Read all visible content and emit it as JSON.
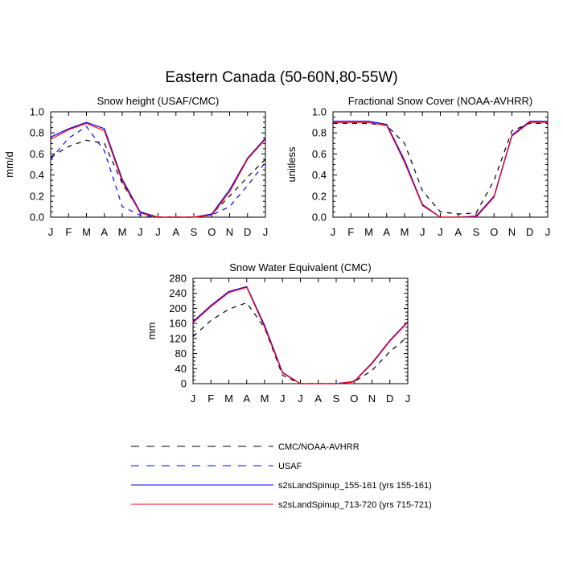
{
  "figure_title": "Eastern Canada (50-60N,80-55W)",
  "legend": [
    {
      "label": "CMC/NOAA-AVHRR",
      "color": "#000000",
      "dash": "dashed"
    },
    {
      "label": "USAF",
      "color": "#0000ff",
      "dash": "dashed"
    },
    {
      "label": "s2sLandSpinup_155-161 (yrs 155-161)",
      "color": "#0000ff",
      "dash": "solid"
    },
    {
      "label": "s2sLandSpinup_713-720 (yrs 715-721)",
      "color": "#ff0000",
      "dash": "solid"
    }
  ],
  "chart_data": [
    {
      "type": "line",
      "title": "Snow height (USAF/CMC)",
      "xlabel": "",
      "ylabel": "mm/d",
      "categories": [
        "J",
        "F",
        "M",
        "A",
        "M",
        "J",
        "J",
        "A",
        "S",
        "O",
        "N",
        "D",
        "J"
      ],
      "ylim": [
        0,
        1.0
      ],
      "yticks": [
        "0.0",
        "0.2",
        "0.4",
        "0.6",
        "0.8",
        "1.0"
      ],
      "series": [
        {
          "name": "CMC/NOAA-AVHRR",
          "color": "#000000",
          "dash": "dashed",
          "values": [
            0.57,
            0.67,
            0.73,
            0.7,
            0.32,
            0.05,
            0.0,
            0.0,
            0.0,
            0.03,
            0.2,
            0.38,
            0.55
          ]
        },
        {
          "name": "USAF",
          "color": "#0000ff",
          "dash": "dashed",
          "values": [
            0.55,
            0.75,
            0.86,
            0.63,
            0.1,
            0.02,
            0.0,
            0.0,
            0.0,
            0.02,
            0.1,
            0.3,
            0.52
          ]
        },
        {
          "name": "s2sLandSpinup_155-161 (yrs 155-161)",
          "color": "#0000ff",
          "dash": "solid",
          "values": [
            0.76,
            0.84,
            0.9,
            0.84,
            0.36,
            0.05,
            0.0,
            0.0,
            0.0,
            0.03,
            0.26,
            0.56,
            0.75
          ]
        },
        {
          "name": "s2sLandSpinup_713-720 (yrs 715-721)",
          "color": "#ff0000",
          "dash": "solid",
          "values": [
            0.74,
            0.83,
            0.89,
            0.82,
            0.34,
            0.04,
            0.0,
            0.0,
            0.0,
            0.02,
            0.24,
            0.55,
            0.74
          ]
        }
      ]
    },
    {
      "type": "line",
      "title": "Fractional Snow Cover (NOAA-AVHRR)",
      "xlabel": "",
      "ylabel": "unitless",
      "categories": [
        "J",
        "F",
        "M",
        "A",
        "M",
        "J",
        "J",
        "A",
        "S",
        "O",
        "N",
        "D",
        "J"
      ],
      "ylim": [
        0,
        1.0
      ],
      "yticks": [
        "0.0",
        "0.2",
        "0.4",
        "0.6",
        "0.8",
        "1.0"
      ],
      "series": [
        {
          "name": "CMC/NOAA-AVHRR",
          "color": "#000000",
          "dash": "dashed",
          "values": [
            0.89,
            0.89,
            0.89,
            0.87,
            0.7,
            0.25,
            0.05,
            0.03,
            0.04,
            0.35,
            0.82,
            0.89,
            0.89
          ]
        },
        {
          "name": "s2sLandSpinup_155-161 (yrs 155-161)",
          "color": "#0000ff",
          "dash": "solid",
          "values": [
            0.91,
            0.91,
            0.91,
            0.88,
            0.54,
            0.12,
            0.0,
            0.0,
            0.01,
            0.2,
            0.78,
            0.91,
            0.91
          ]
        },
        {
          "name": "s2sLandSpinup_713-720 (yrs 715-721)",
          "color": "#ff0000",
          "dash": "solid",
          "values": [
            0.9,
            0.9,
            0.9,
            0.87,
            0.52,
            0.11,
            0.0,
            0.0,
            0.0,
            0.19,
            0.77,
            0.9,
            0.9
          ]
        }
      ]
    },
    {
      "type": "line",
      "title": "Snow Water Equivalent (CMC)",
      "xlabel": "",
      "ylabel": "mm",
      "categories": [
        "J",
        "F",
        "M",
        "A",
        "M",
        "J",
        "J",
        "A",
        "S",
        "O",
        "N",
        "D",
        "J"
      ],
      "ylim": [
        0,
        280
      ],
      "yticks": [
        "0",
        "40",
        "80",
        "120",
        "160",
        "200",
        "240",
        "280"
      ],
      "series": [
        {
          "name": "CMC/NOAA-AVHRR",
          "color": "#000000",
          "dash": "dashed",
          "values": [
            125,
            168,
            198,
            215,
            148,
            22,
            0,
            0,
            0,
            5,
            35,
            85,
            125
          ]
        },
        {
          "name": "s2sLandSpinup_155-161 (yrs 155-161)",
          "color": "#0000ff",
          "dash": "solid",
          "values": [
            165,
            208,
            245,
            258,
            155,
            30,
            0,
            0,
            0,
            6,
            55,
            115,
            165
          ]
        },
        {
          "name": "s2sLandSpinup_713-720 (yrs 715-721)",
          "color": "#ff0000",
          "dash": "solid",
          "values": [
            162,
            205,
            242,
            256,
            150,
            28,
            0,
            0,
            0,
            5,
            53,
            113,
            163
          ]
        }
      ]
    }
  ]
}
